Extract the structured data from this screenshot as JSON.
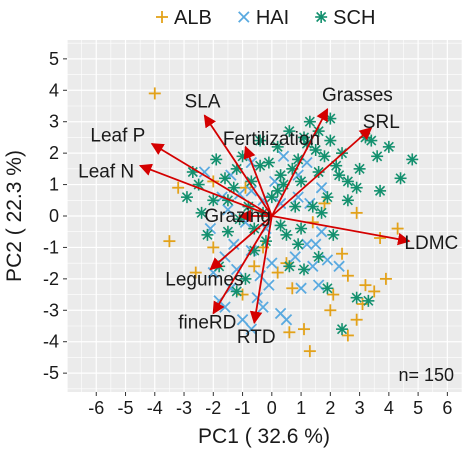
{
  "chart_data": {
    "type": "scatter",
    "subtype": "pca-biplot",
    "title": "",
    "xlabel": "PC1 ( 32.6 %)",
    "ylabel": "PC2 ( 22.3 %)",
    "xlim": [
      -7,
      6.5
    ],
    "ylim": [
      -5.6,
      5.6
    ],
    "x_ticks": [
      -6,
      -5,
      -4,
      -3,
      -2,
      -1,
      0,
      1,
      2,
      3,
      4,
      5,
      6
    ],
    "y_ticks": [
      -5,
      -4,
      -3,
      -2,
      -1,
      0,
      1,
      2,
      3,
      4,
      5
    ],
    "grid": true,
    "legend_position": "top",
    "annotation": "n= 150",
    "series": [
      {
        "name": "ALB",
        "marker": "plus",
        "color": "#E3A21A",
        "points": [
          [
            -4.0,
            3.9
          ],
          [
            -3.2,
            0.9
          ],
          [
            -3.5,
            -0.8
          ],
          [
            -2.0,
            -1.0
          ],
          [
            -2.6,
            -1.8
          ],
          [
            -1.0,
            -2.5
          ],
          [
            -2.0,
            1.1
          ],
          [
            -0.9,
            0.9
          ],
          [
            -0.3,
            -1.0
          ],
          [
            -0.6,
            -1.6
          ],
          [
            1.8,
            0.4
          ],
          [
            2.4,
            -1.2
          ],
          [
            2.9,
            0.1
          ],
          [
            2.6,
            -1.9
          ],
          [
            2.0,
            -3.0
          ],
          [
            2.9,
            -3.3
          ],
          [
            2.6,
            -3.8
          ],
          [
            3.1,
            -2.8
          ],
          [
            3.2,
            -2.2
          ],
          [
            3.5,
            -2.4
          ],
          [
            3.9,
            -2.0
          ],
          [
            4.3,
            -0.4
          ],
          [
            3.7,
            -0.7
          ],
          [
            1.1,
            -3.6
          ],
          [
            2.1,
            -2.5
          ],
          [
            0.6,
            -3.7
          ],
          [
            0.7,
            -2.3
          ],
          [
            1.4,
            -0.2
          ],
          [
            0.2,
            -1.8
          ],
          [
            1.3,
            -4.3
          ],
          [
            0.5,
            -1.5
          ]
        ]
      },
      {
        "name": "HAI",
        "marker": "x",
        "color": "#5AAAE0",
        "points": [
          [
            -1.7,
            0.6
          ],
          [
            -1.1,
            0.7
          ],
          [
            -0.7,
            0.8
          ],
          [
            -0.3,
            0.5
          ],
          [
            -0.9,
            -0.2
          ],
          [
            -1.3,
            -0.9
          ],
          [
            -1.6,
            -1.3
          ],
          [
            -2.0,
            -1.8
          ],
          [
            -1.4,
            -2.3
          ],
          [
            -1.8,
            -2.7
          ],
          [
            -1.0,
            -3.3
          ],
          [
            -0.7,
            -3.6
          ],
          [
            -0.3,
            -2.9
          ],
          [
            0.3,
            -3.1
          ],
          [
            0.5,
            -3.3
          ],
          [
            -0.5,
            -2.6
          ],
          [
            -1.2,
            -1.7
          ],
          [
            -0.7,
            -1.1
          ],
          [
            -0.2,
            -0.4
          ],
          [
            0.3,
            0.4
          ],
          [
            0.9,
            0.6
          ],
          [
            1.3,
            0.4
          ],
          [
            1.7,
            -0.5
          ],
          [
            1.2,
            -0.9
          ],
          [
            0.8,
            -1.3
          ],
          [
            1.4,
            -1.6
          ],
          [
            1.0,
            -2.3
          ],
          [
            1.6,
            -2.2
          ],
          [
            1.9,
            -1.4
          ],
          [
            -2.3,
            1.4
          ],
          [
            -0.7,
            1.7
          ],
          [
            0.4,
            1.9
          ],
          [
            1.2,
            1.7
          ],
          [
            0.9,
            1.3
          ],
          [
            -1.5,
            0.2
          ],
          [
            -0.4,
            -1.9
          ],
          [
            -0.1,
            -2.2
          ],
          [
            1.5,
            -0.9
          ],
          [
            2.3,
            -1.6
          ],
          [
            -2.1,
            -0.4
          ],
          [
            0.1,
            1.1
          ],
          [
            -1.6,
            -2.9
          ],
          [
            0.0,
            -1.5
          ],
          [
            1.7,
            0.9
          ],
          [
            -1.4,
            1.3
          ]
        ]
      },
      {
        "name": "SCH",
        "marker": "star",
        "color": "#13906E",
        "points": [
          [
            -2.5,
            1.0
          ],
          [
            -2.0,
            0.5
          ],
          [
            -1.6,
            1.2
          ],
          [
            -1.2,
            1.5
          ],
          [
            -0.7,
            1.1
          ],
          [
            -0.4,
            1.6
          ],
          [
            0.3,
            1.3
          ],
          [
            0.9,
            1.8
          ],
          [
            1.2,
            2.3
          ],
          [
            1.6,
            2.7
          ],
          [
            2.0,
            3.1
          ],
          [
            1.8,
            1.9
          ],
          [
            2.2,
            1.6
          ],
          [
            2.6,
            1.1
          ],
          [
            3.0,
            1.5
          ],
          [
            3.4,
            2.4
          ],
          [
            3.7,
            0.8
          ],
          [
            4.4,
            1.2
          ],
          [
            4.8,
            1.8
          ],
          [
            3.2,
            2.5
          ],
          [
            0.4,
            1.0
          ],
          [
            1.0,
            1.1
          ],
          [
            1.4,
            0.3
          ],
          [
            1.9,
            0.6
          ],
          [
            0.8,
            0.3
          ],
          [
            0.3,
            -0.3
          ],
          [
            1.6,
            -1.3
          ],
          [
            2.1,
            -0.6
          ],
          [
            1.1,
            -1.7
          ],
          [
            -1.5,
            0.5
          ],
          [
            -1.1,
            -0.1
          ],
          [
            -0.6,
            -1.1
          ],
          [
            -0.9,
            -2.0
          ],
          [
            -1.8,
            -1.6
          ],
          [
            -1.2,
            -2.4
          ],
          [
            0.6,
            -1.6
          ],
          [
            1.9,
            -2.3
          ],
          [
            2.4,
            -3.6
          ],
          [
            2.9,
            -2.6
          ],
          [
            3.3,
            -2.7
          ],
          [
            -0.4,
            2.4
          ],
          [
            -1.9,
            1.8
          ],
          [
            0.2,
            2.2
          ],
          [
            -2.9,
            0.6
          ],
          [
            2.6,
            0.5
          ],
          [
            -1.0,
            1.9
          ],
          [
            0.5,
            -0.6
          ],
          [
            -2.2,
            -0.6
          ],
          [
            2.4,
            2.0
          ],
          [
            3.6,
            1.9
          ],
          [
            -0.1,
            1.7
          ],
          [
            1.6,
            1.4
          ],
          [
            -0.8,
            0.3
          ],
          [
            0.9,
            -0.9
          ],
          [
            4.0,
            2.2
          ],
          [
            1.3,
            3.0
          ],
          [
            -1.3,
            0.9
          ],
          [
            0.0,
            0.6
          ],
          [
            2.3,
            1.3
          ],
          [
            1.1,
            2.5
          ],
          [
            -2.4,
            0.1
          ],
          [
            -0.3,
            0.1
          ],
          [
            1.7,
            0.1
          ],
          [
            2.9,
            0.9
          ],
          [
            0.6,
            2.7
          ],
          [
            -1.5,
            -0.5
          ],
          [
            0.2,
            0.8
          ],
          [
            1.5,
            2.1
          ],
          [
            -0.6,
            -0.4
          ],
          [
            2.0,
            2.4
          ],
          [
            -2.7,
            1.4
          ],
          [
            1.0,
            -0.4
          ],
          [
            -0.2,
            -0.8
          ],
          [
            0.7,
            1.5
          ]
        ]
      }
    ],
    "loadings": [
      {
        "label": "SLA",
        "x": -2.3,
        "y": 3.2
      },
      {
        "label": "Fertilization",
        "x": -0.9,
        "y": 2.2
      },
      {
        "label": "Leaf P",
        "x": -4.1,
        "y": 2.3
      },
      {
        "label": "Leaf N",
        "x": -4.5,
        "y": 1.6
      },
      {
        "label": "Grazing",
        "x": -1.1,
        "y": 0.0
      },
      {
        "label": "Legumes",
        "x": -2.1,
        "y": -1.7
      },
      {
        "label": "Grasses",
        "x": 1.9,
        "y": 3.4
      },
      {
        "label": "SRL",
        "x": 3.4,
        "y": 2.8
      },
      {
        "label": "LDMC",
        "x": 4.7,
        "y": -0.8
      },
      {
        "label": "fineRD",
        "x": -2.0,
        "y": -3.1
      },
      {
        "label": "RTD",
        "x": -0.6,
        "y": -3.4
      }
    ],
    "arrow_color": "#D40000"
  }
}
